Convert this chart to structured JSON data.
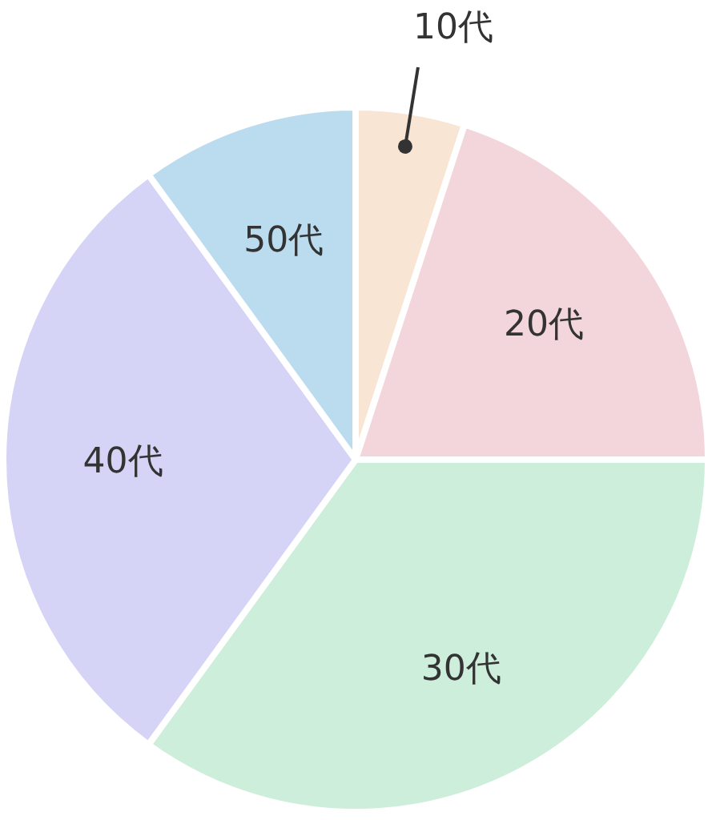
{
  "chart_data": {
    "type": "pie",
    "categories": [
      "10代",
      "20代",
      "30代",
      "40代",
      "50代"
    ],
    "values": [
      5,
      20,
      35,
      30,
      10
    ],
    "colors": [
      "#f8e5d3",
      "#f3d6dc",
      "#cdeedb",
      "#d5d4f7",
      "#badcee"
    ]
  }
}
